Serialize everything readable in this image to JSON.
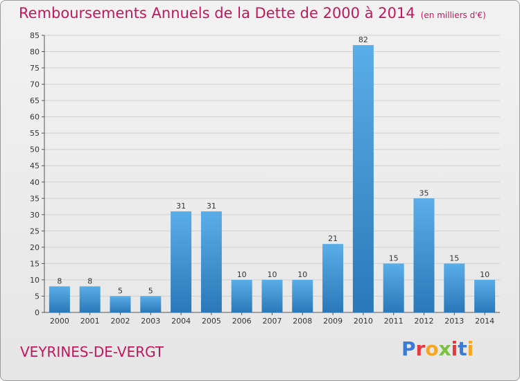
{
  "chart_data": {
    "type": "bar",
    "title": "Remboursements Annuels de la Dette de 2000 à 2014",
    "subtitle": "(en milliers d'€)",
    "categories": [
      "2000",
      "2001",
      "2002",
      "2003",
      "2004",
      "2005",
      "2006",
      "2007",
      "2008",
      "2009",
      "2010",
      "2011",
      "2012",
      "2013",
      "2014"
    ],
    "values": [
      8,
      8,
      5,
      5,
      31,
      31,
      10,
      10,
      10,
      21,
      82,
      15,
      35,
      15,
      10
    ],
    "ylim": [
      0,
      85
    ],
    "yticks": [
      0,
      5,
      10,
      15,
      20,
      25,
      30,
      35,
      40,
      45,
      50,
      55,
      60,
      65,
      70,
      75,
      80,
      85
    ],
    "xlabel": "",
    "ylabel": "",
    "grid": true
  },
  "footer": {
    "commune": "VEYRINES-DE-VERGT",
    "brand_letters": [
      "P",
      "r",
      "o",
      "x",
      "i",
      "t",
      "i"
    ]
  },
  "colors": {
    "title": "#c2185b",
    "bar_top": "#5aaee8",
    "bar_bottom": "#2a78b8",
    "brand": [
      "#3a7bd5",
      "#e8383d",
      "#f5a623",
      "#7bc043",
      "#e8383d",
      "#3a7bd5",
      "#f5a623"
    ]
  }
}
